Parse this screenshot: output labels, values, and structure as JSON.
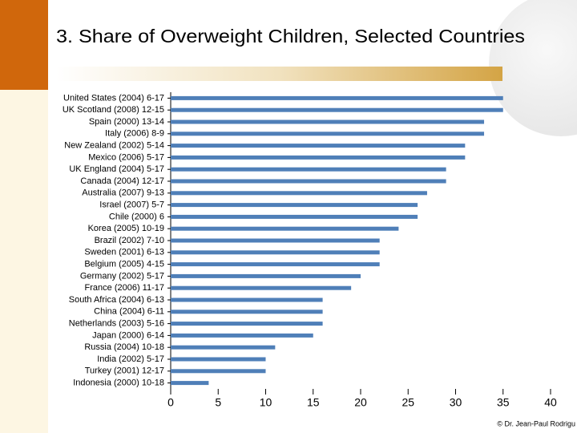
{
  "chart_data": {
    "type": "bar",
    "orientation": "horizontal",
    "title": "3. Share of Overweight Children, Selected Countries",
    "categories": [
      "United States (2004) 6-17",
      "UK Scotland (2008) 12-15",
      "Spain (2000) 13-14",
      "Italy (2006) 8-9",
      "New Zealand (2002) 5-14",
      "Mexico (2006) 5-17",
      "UK England (2004) 5-17",
      "Canada (2004) 12-17",
      "Australia (2007) 9-13",
      "Israel (2007) 5-7",
      "Chile (2000) 6",
      "Korea (2005) 10-19",
      "Brazil (2002) 7-10",
      "Sweden (2001) 6-13",
      "Belgium (2005) 4-15",
      "Germany (2002) 5-17",
      "France (2006) 11-17",
      "South Africa (2004) 6-13",
      "China (2004) 6-11",
      "Netherlands (2003) 5-16",
      "Japan (2000) 6-14",
      "Russia (2004) 10-18",
      "India (2002) 5-17",
      "Turkey (2001) 12-17",
      "Indonesia (2000) 10-18"
    ],
    "values": [
      35,
      35,
      33,
      33,
      31,
      31,
      29,
      29,
      27,
      26,
      26,
      24,
      22,
      22,
      22,
      20,
      19,
      16,
      16,
      16,
      15,
      11,
      10,
      10,
      4
    ],
    "color": "#4f7fb8",
    "xlim": [
      0,
      40
    ],
    "xticks": [
      0,
      5,
      10,
      15,
      20,
      25,
      30,
      35,
      40
    ],
    "credit": "© Dr. Jean-Paul Rodrigu"
  }
}
